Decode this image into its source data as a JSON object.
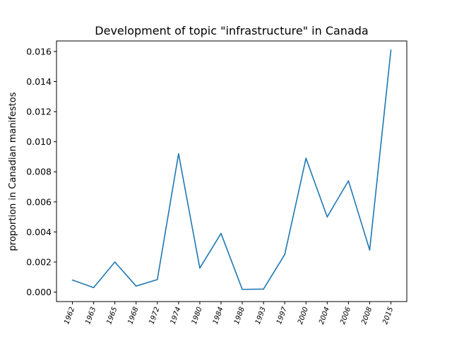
{
  "chart_data": {
    "type": "line",
    "title": "Development of topic \"infrastructure\" in Canada",
    "xlabel": "",
    "ylabel": "proportion in Canadian manifestos",
    "categories": [
      "1962",
      "1963",
      "1965",
      "1968",
      "1972",
      "1974",
      "1980",
      "1984",
      "1988",
      "1993",
      "1997",
      "2000",
      "2004",
      "2006",
      "2008",
      "2015"
    ],
    "series": [
      {
        "values": [
          0.0008,
          0.0003,
          0.002,
          0.0004,
          0.00083,
          0.0092,
          0.0016,
          0.0039,
          0.00018,
          0.0002,
          0.0025,
          0.0089,
          0.005,
          0.0074,
          0.0028,
          0.0161
        ],
        "color": "#1f77b4"
      }
    ],
    "ylim": [
      -0.00063,
      0.0167
    ],
    "yticks": [
      "0.000",
      "0.002",
      "0.004",
      "0.006",
      "0.008",
      "0.010",
      "0.012",
      "0.014",
      "0.016"
    ],
    "grid": false,
    "legend": "none"
  }
}
